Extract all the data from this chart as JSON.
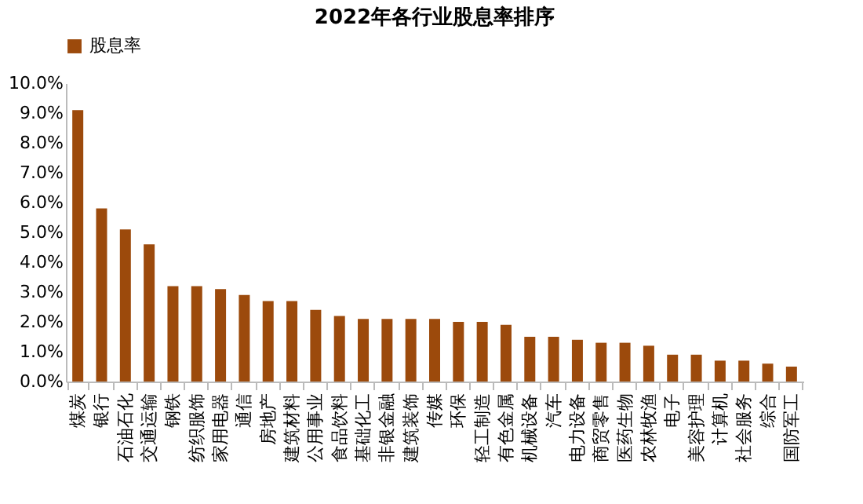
{
  "chart_data": {
    "type": "bar",
    "title": "2022年各行业股息率排序",
    "categories": [
      "煤炭",
      "银行",
      "石油石化",
      "交通运输",
      "钢铁",
      "纺织服饰",
      "家用电器",
      "通信",
      "房地产",
      "建筑材料",
      "公用事业",
      "食品饮料",
      "基础化工",
      "非银金融",
      "建筑装饰",
      "传媒",
      "环保",
      "轻工制造",
      "有色金属",
      "机械设备",
      "汽车",
      "电力设备",
      "商贸零售",
      "医药生物",
      "农林牧渔",
      "电子",
      "美容护理",
      "计算机",
      "社会服务",
      "综合",
      "国防军工"
    ],
    "series": [
      {
        "name": "股息率",
        "color": "#9c4a0c",
        "values": [
          9.1,
          5.8,
          5.1,
          4.6,
          3.2,
          3.2,
          3.1,
          2.9,
          2.7,
          2.7,
          2.4,
          2.2,
          2.1,
          2.1,
          2.1,
          2.1,
          2.0,
          2.0,
          1.9,
          1.5,
          1.5,
          1.4,
          1.3,
          1.3,
          1.2,
          0.9,
          0.9,
          0.7,
          0.7,
          0.6,
          0.5
        ]
      }
    ],
    "ylim": [
      0,
      10
    ],
    "yticks": [
      {
        "value": 0,
        "label": "0.0%"
      },
      {
        "value": 1,
        "label": "1.0%"
      },
      {
        "value": 2,
        "label": "2.0%"
      },
      {
        "value": 3,
        "label": "3.0%"
      },
      {
        "value": 4,
        "label": "4.0%"
      },
      {
        "value": 5,
        "label": "5.0%"
      },
      {
        "value": 6,
        "label": "6.0%"
      },
      {
        "value": 7,
        "label": "7.0%"
      },
      {
        "value": 8,
        "label": "8.0%"
      },
      {
        "value": 9,
        "label": "9.0%"
      },
      {
        "value": 10,
        "label": "10.0%"
      }
    ],
    "grid": false,
    "legend": "top"
  }
}
